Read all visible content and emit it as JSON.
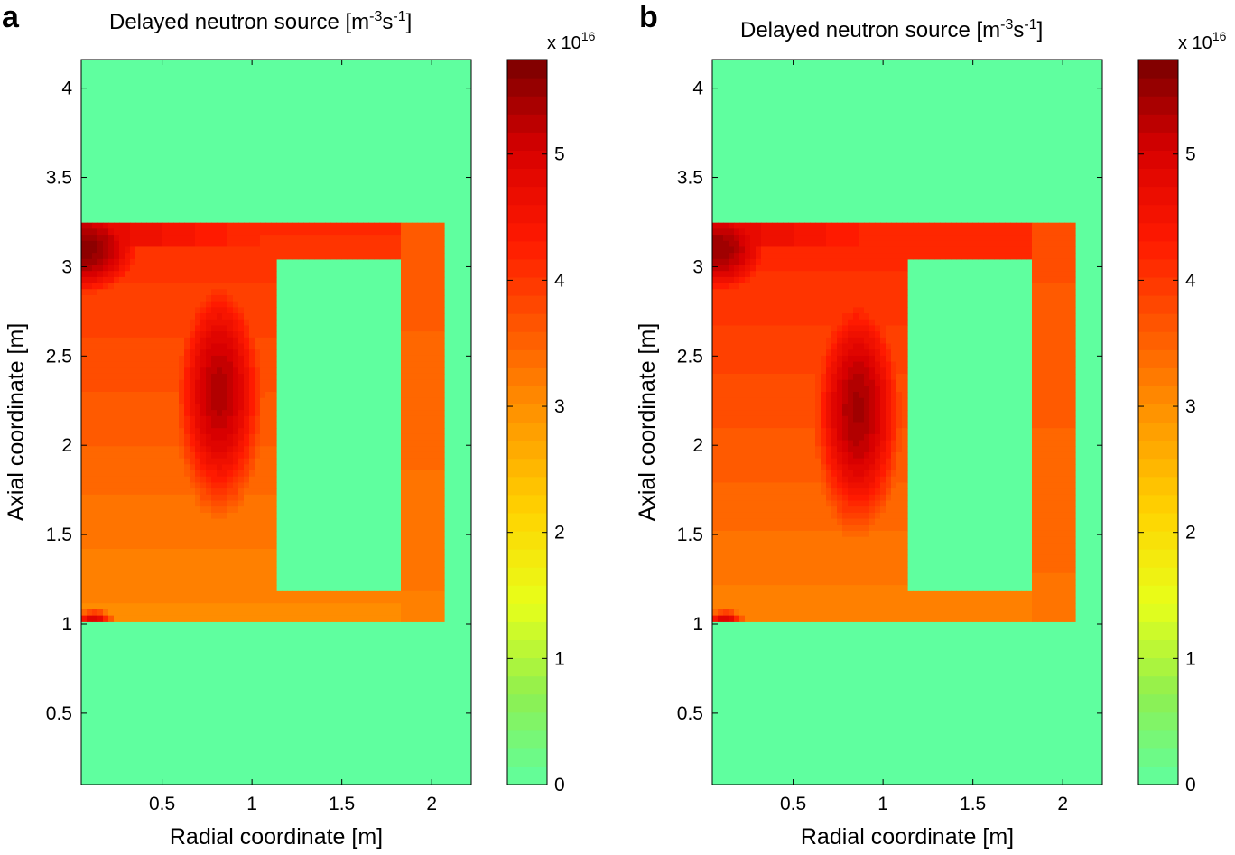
{
  "chart_data": [
    {
      "panel": "a",
      "type": "heatmap",
      "title": "Delayed neutron source [m-3s-1]",
      "title_parts": {
        "base": "Delayed neutron source [m",
        "exp1": "-3",
        "mid": "s",
        "exp2": "-1",
        "end": "]"
      },
      "xlabel": "Radial coordinate [m]",
      "ylabel": "Axial coordinate [m]",
      "xlim": [
        0.05,
        2.22
      ],
      "ylim": [
        0.1,
        4.16
      ],
      "x_ticks": [
        0.5,
        1,
        1.5,
        2
      ],
      "x_tick_labels": [
        "0.5",
        "1",
        "1.5",
        "2"
      ],
      "y_ticks": [
        0.5,
        1,
        1.5,
        2,
        2.5,
        3,
        3.5,
        4
      ],
      "y_tick_labels": [
        "0.5",
        "1",
        "1.5",
        "2",
        "2.5",
        "3",
        "3.5",
        "4"
      ],
      "colorbar": {
        "range": [
          0,
          5.75
        ],
        "ticks": [
          0,
          1,
          2,
          3,
          4,
          5
        ],
        "tick_labels": [
          "0",
          "1",
          "2",
          "3",
          "4",
          "5"
        ],
        "multiplier_base": "x 10",
        "multiplier_exp": "16",
        "colormap": [
          "#5fff9f",
          "#8fef4f",
          "#e8ff1a",
          "#ffd400",
          "#ff9a00",
          "#ff5a00",
          "#ff1a00",
          "#d80000",
          "#7a0000"
        ]
      },
      "background_value": 0,
      "core_region": {
        "r": [
          0.05,
          2.07
        ],
        "z": [
          1.0,
          3.25
        ]
      },
      "inner_reflector": {
        "r": [
          1.13,
          1.83
        ],
        "z": [
          1.19,
          3.06
        ]
      },
      "peak": {
        "r": 0.82,
        "z": 2.3,
        "value": 5.4
      },
      "corner_peak": {
        "r": 0.08,
        "z": 3.1,
        "value": 5.7
      },
      "bottom_channel_value": 3.1
    },
    {
      "panel": "b",
      "type": "heatmap",
      "title": "Delayed neutron source [m-3s-1]",
      "title_parts": {
        "base": "Delayed neutron source [m",
        "exp1": "-3",
        "mid": "s",
        "exp2": "-1",
        "end": "]"
      },
      "xlabel": "Radial coordinate [m]",
      "ylabel": "Axial coordinate [m]",
      "xlim": [
        0.05,
        2.22
      ],
      "ylim": [
        0.1,
        4.16
      ],
      "x_ticks": [
        0.5,
        1,
        1.5,
        2
      ],
      "x_tick_labels": [
        "0.5",
        "1",
        "1.5",
        "2"
      ],
      "y_ticks": [
        0.5,
        1,
        1.5,
        2,
        2.5,
        3,
        3.5,
        4
      ],
      "y_tick_labels": [
        "0.5",
        "1",
        "1.5",
        "2",
        "2.5",
        "3",
        "3.5",
        "4"
      ],
      "colorbar": {
        "range": [
          0,
          5.75
        ],
        "ticks": [
          0,
          1,
          2,
          3,
          4,
          5
        ],
        "tick_labels": [
          "0",
          "1",
          "2",
          "3",
          "4",
          "5"
        ],
        "multiplier_base": "x 10",
        "multiplier_exp": "16",
        "colormap": [
          "#5fff9f",
          "#8fef4f",
          "#e8ff1a",
          "#ffd400",
          "#ff9a00",
          "#ff5a00",
          "#ff1a00",
          "#d80000",
          "#7a0000"
        ]
      },
      "background_value": 0,
      "core_region": {
        "r": [
          0.05,
          2.07
        ],
        "z": [
          1.0,
          3.25
        ]
      },
      "inner_reflector": {
        "r": [
          1.13,
          1.83
        ],
        "z": [
          1.19,
          3.06
        ]
      },
      "peak": {
        "r": 0.86,
        "z": 2.2,
        "value": 5.5
      },
      "corner_peak": {
        "r": 0.08,
        "z": 3.1,
        "value": 5.6
      },
      "bottom_channel_value": 3.2
    }
  ]
}
